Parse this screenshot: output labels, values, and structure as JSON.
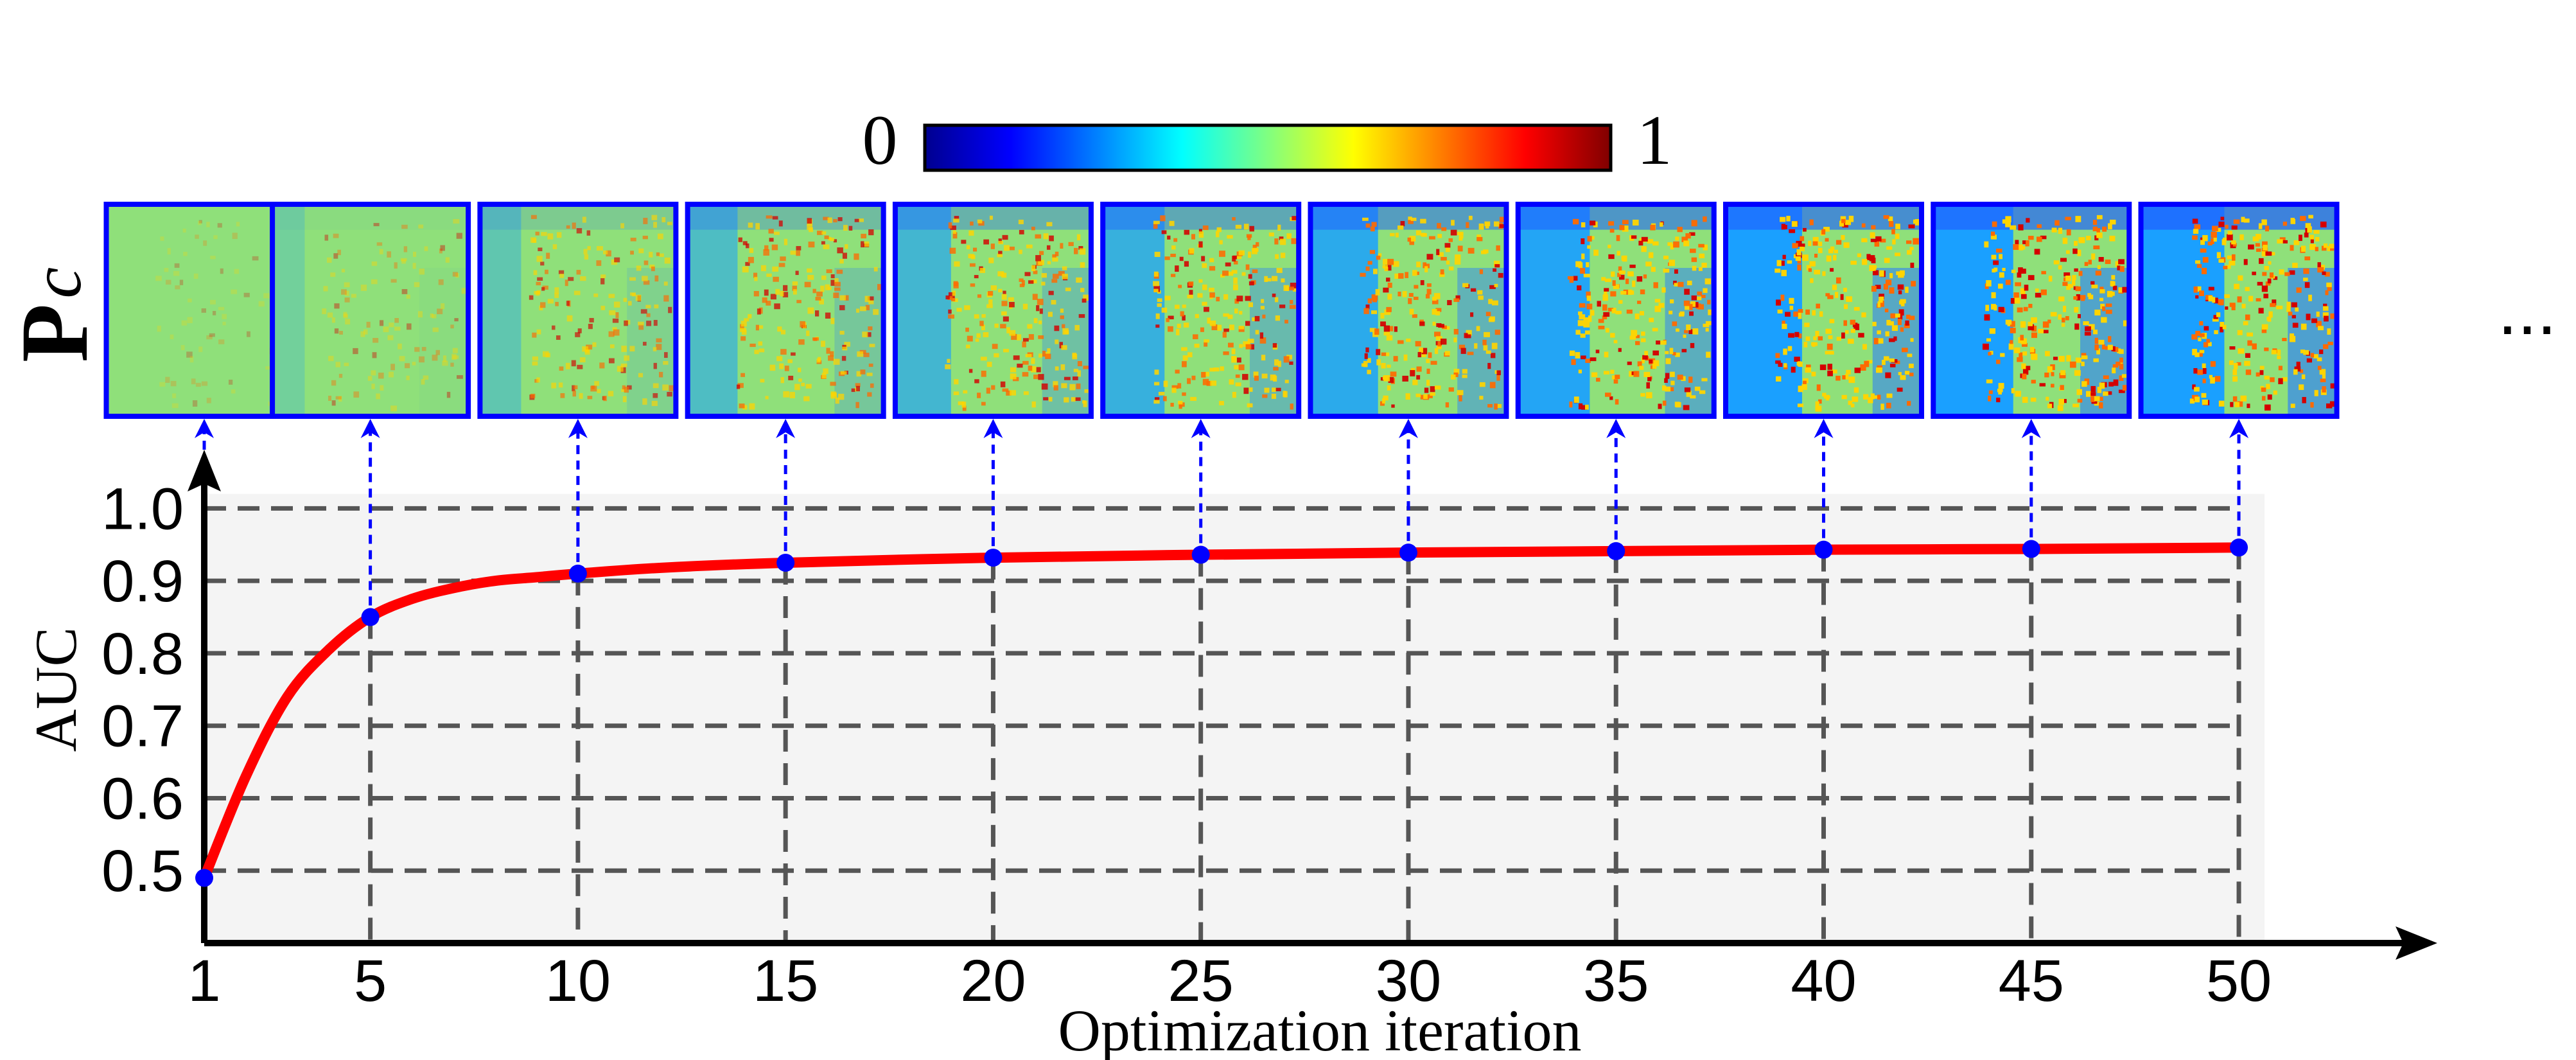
{
  "colorbar": {
    "min_label": "0",
    "max_label": "1",
    "stops": [
      "#00008f",
      "#0000ff",
      "#0080ff",
      "#00ffff",
      "#80ff80",
      "#ffff00",
      "#ff8000",
      "#ff0000",
      "#800000"
    ]
  },
  "row_label": {
    "main": "P",
    "subscript": "c"
  },
  "ellipsis": "...",
  "maps": [
    {
      "iteration": 1,
      "blue_level": 0.0,
      "hot_level": 0.05
    },
    {
      "iteration": 5,
      "blue_level": 0.05,
      "hot_level": 0.2
    },
    {
      "iteration": 10,
      "blue_level": 0.2,
      "hot_level": 0.45
    },
    {
      "iteration": 15,
      "blue_level": 0.35,
      "hot_level": 0.55
    },
    {
      "iteration": 20,
      "blue_level": 0.45,
      "hot_level": 0.62
    },
    {
      "iteration": 25,
      "blue_level": 0.55,
      "hot_level": 0.68
    },
    {
      "iteration": 30,
      "blue_level": 0.65,
      "hot_level": 0.72
    },
    {
      "iteration": 35,
      "blue_level": 0.72,
      "hot_level": 0.76
    },
    {
      "iteration": 40,
      "blue_level": 0.8,
      "hot_level": 0.8
    },
    {
      "iteration": 45,
      "blue_level": 0.86,
      "hot_level": 0.83
    },
    {
      "iteration": 50,
      "blue_level": 0.92,
      "hot_level": 0.86
    }
  ],
  "colors": {
    "curve": "#ff0000",
    "marker": "#0000ff",
    "map_border": "#0000ff",
    "grid": "#555555",
    "plot_bg": "#f4f4f4",
    "axis": "#000000"
  },
  "chart_data": {
    "type": "line",
    "title": "",
    "xlabel": "Optimization iteration",
    "ylabel": "AUC",
    "xlim": [
      1,
      53
    ],
    "ylim": [
      0.4,
      1.05
    ],
    "x_ticks": [
      1,
      5,
      10,
      15,
      20,
      25,
      30,
      35,
      40,
      45,
      50
    ],
    "x_tick_labels": [
      "1",
      "5",
      "10",
      "15",
      "20",
      "25",
      "30",
      "35",
      "40",
      "45",
      "50"
    ],
    "y_ticks": [
      0.5,
      0.6,
      0.7,
      0.8,
      0.9,
      1.0
    ],
    "y_tick_labels": [
      "0.5",
      "0.6",
      "0.7",
      "0.8",
      "0.9",
      "1.0"
    ],
    "grid": true,
    "series": [
      {
        "name": "AUC",
        "x": [
          1,
          2,
          3,
          4,
          5,
          6,
          7,
          8,
          9,
          10,
          12,
          15,
          20,
          25,
          30,
          35,
          40,
          45,
          50
        ],
        "values": [
          0.49,
          0.63,
          0.74,
          0.805,
          0.85,
          0.875,
          0.89,
          0.9,
          0.905,
          0.91,
          0.918,
          0.925,
          0.932,
          0.936,
          0.939,
          0.941,
          0.943,
          0.944,
          0.946
        ]
      }
    ],
    "markers": {
      "x": [
        1,
        5,
        10,
        15,
        20,
        25,
        30,
        35,
        40,
        45,
        50
      ],
      "values": [
        0.49,
        0.85,
        0.91,
        0.925,
        0.932,
        0.936,
        0.939,
        0.941,
        0.943,
        0.944,
        0.946
      ]
    }
  }
}
